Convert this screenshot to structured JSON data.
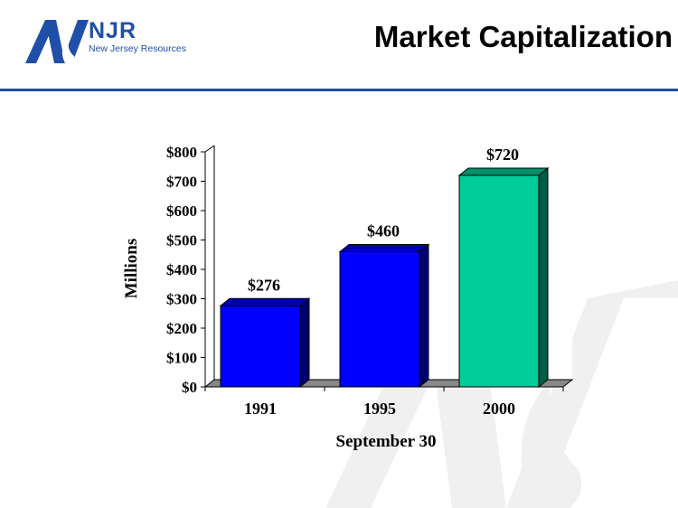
{
  "header": {
    "logo_name": "NJR",
    "logo_subtitle": "New Jersey Resources",
    "title": "Market Capitalization"
  },
  "colors": {
    "brand_blue": "#1f4fa8",
    "bar_blue": "#0000ff",
    "bar_green": "#00cc99"
  },
  "chart_data": {
    "type": "bar",
    "categories": [
      "1991",
      "1995",
      "2000"
    ],
    "values": [
      276,
      460,
      720
    ],
    "value_labels": [
      "$276",
      "$460",
      "$720"
    ],
    "bar_colors": [
      "#0000ff",
      "#0000ff",
      "#00cc99"
    ],
    "xlabel": "September 30",
    "ylabel": "Millions",
    "ylim": [
      0,
      800
    ],
    "yticks": [
      0,
      100,
      200,
      300,
      400,
      500,
      600,
      700,
      800
    ],
    "ytick_labels": [
      "$0",
      "$100",
      "$200",
      "$300",
      "$400",
      "$500",
      "$600",
      "$700",
      "$800"
    ],
    "style": "3d",
    "grid": false,
    "legend": "none"
  }
}
